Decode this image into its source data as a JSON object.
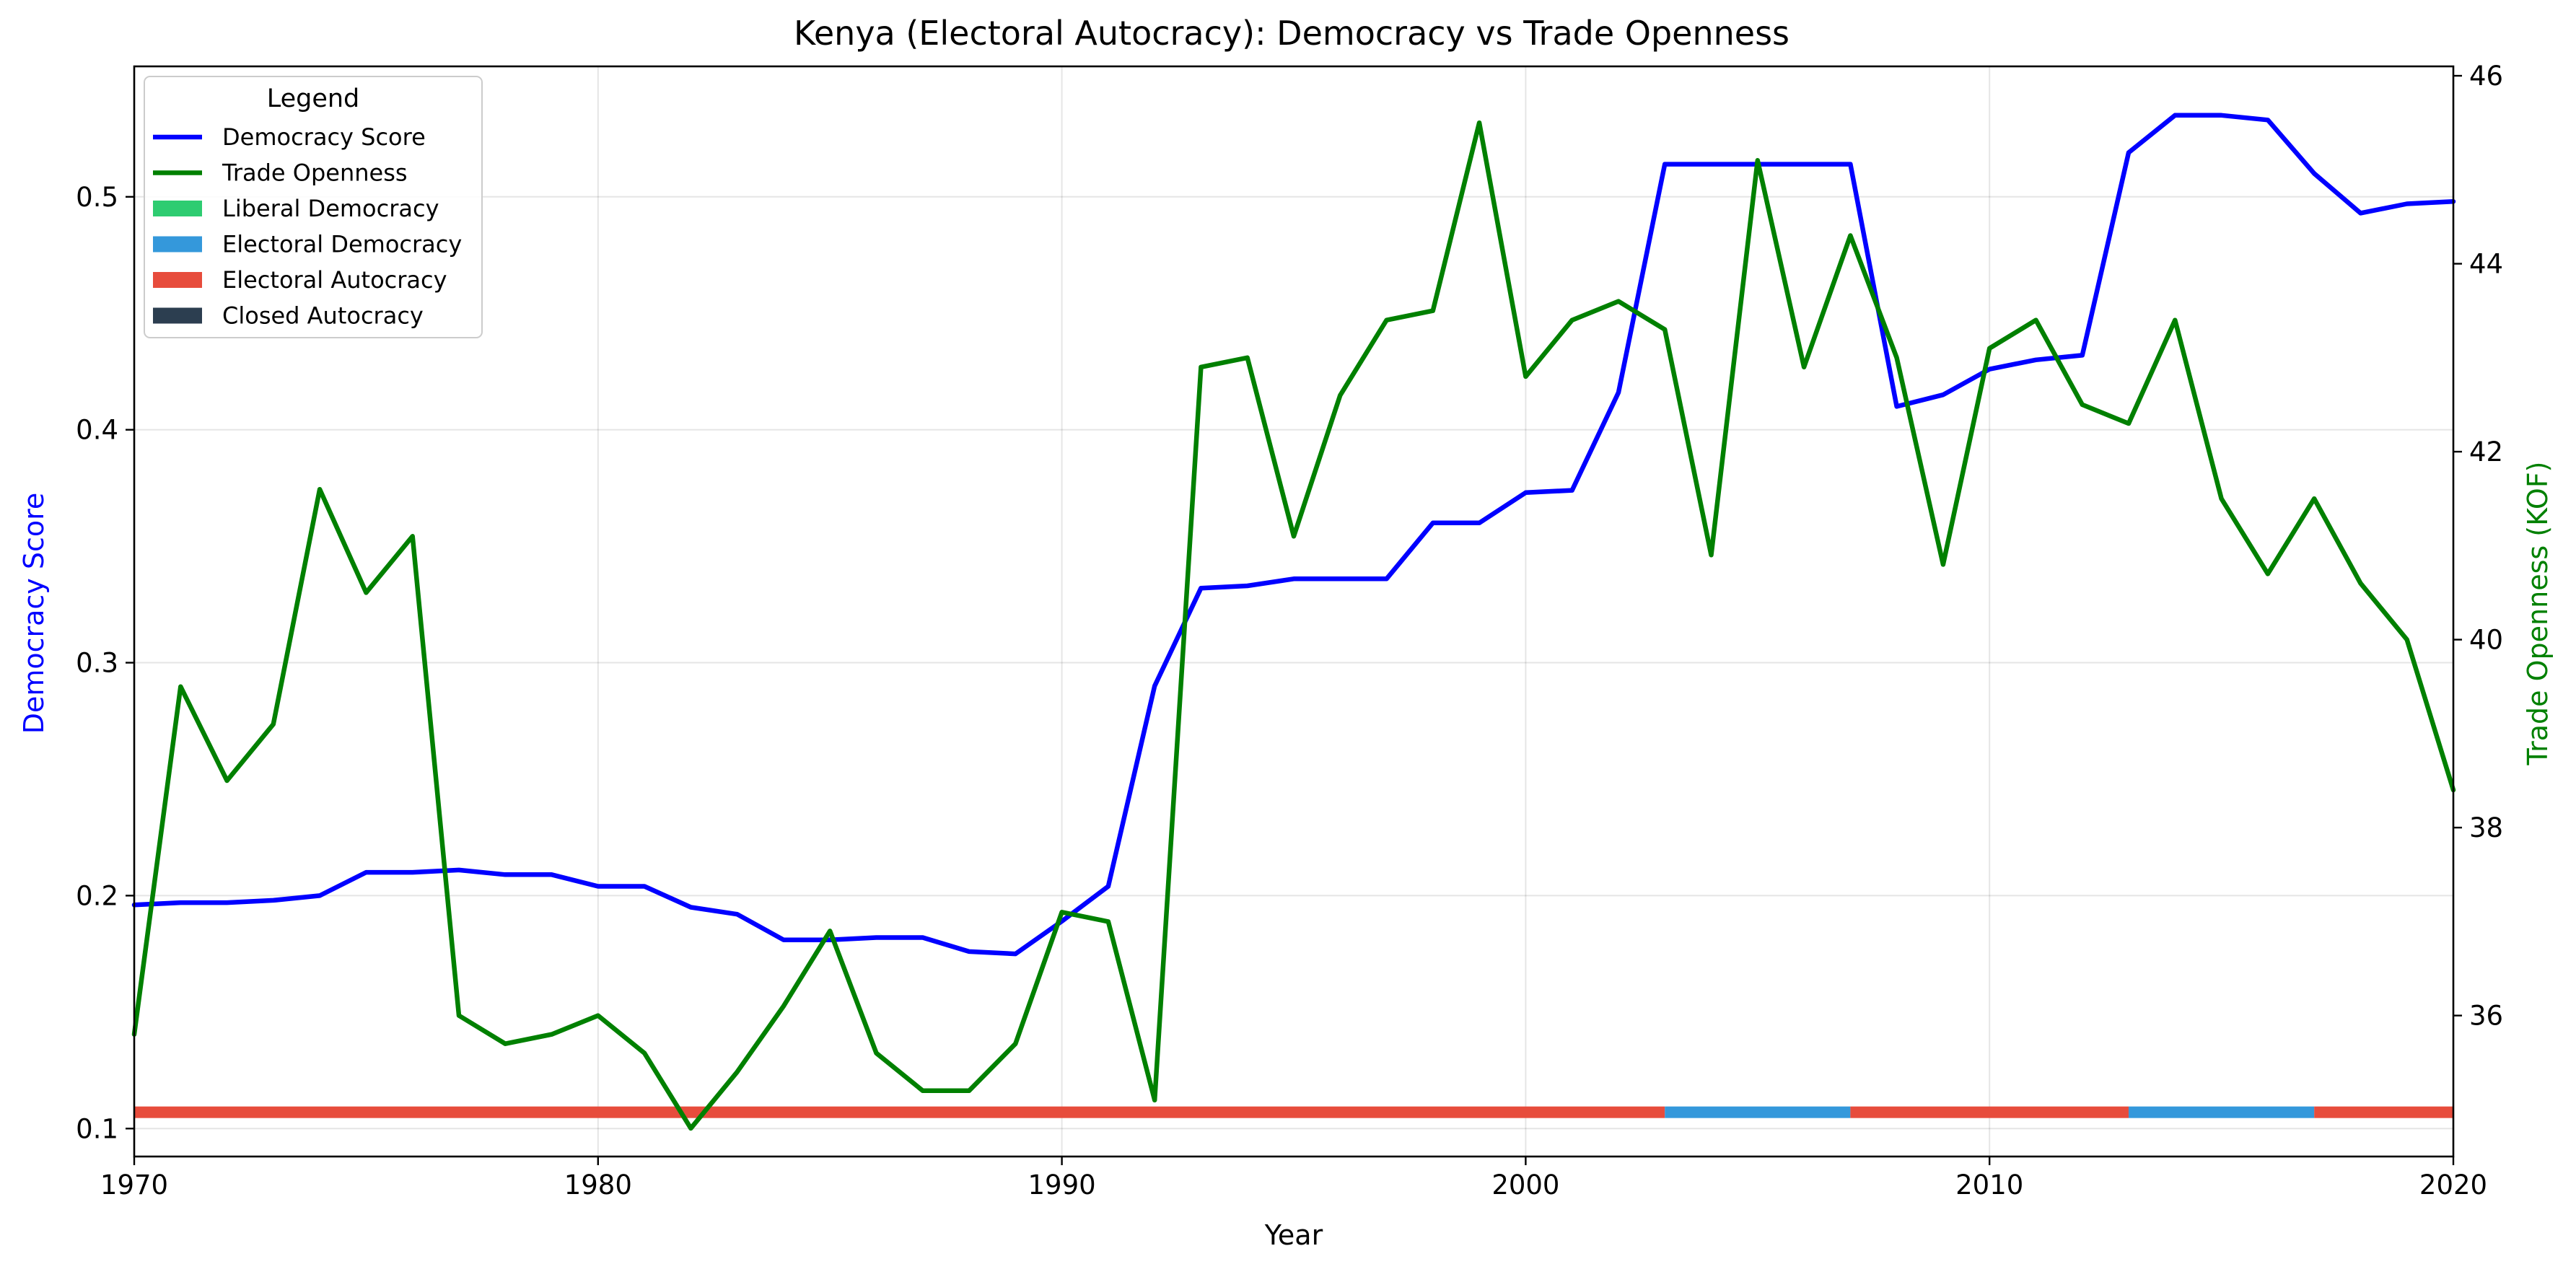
{
  "chart_data": {
    "type": "line",
    "title": "Kenya (Electoral Autocracy): Democracy vs Trade Openness",
    "xlabel": "Year",
    "ylabel_left": "Democracy Score",
    "ylabel_right": "Trade Openness (KOF)",
    "xlim": [
      1970,
      2020
    ],
    "ylim_left": [
      0.088,
      0.556
    ],
    "ylim_right": [
      34.5,
      46.1
    ],
    "x_ticks": [
      1970,
      1980,
      1990,
      2000,
      2010,
      2020
    ],
    "y_ticks_left": [
      0.1,
      0.2,
      0.3,
      0.4,
      0.5
    ],
    "y_ticks_right": [
      36,
      38,
      40,
      42,
      44,
      46
    ],
    "grid": true,
    "legend": {
      "title": "Legend",
      "position": "top-left",
      "entries": [
        {
          "label": "Democracy Score",
          "color": "#0000ff",
          "kind": "line"
        },
        {
          "label": "Trade Openness",
          "color": "#008000",
          "kind": "line"
        },
        {
          "label": "Liberal Democracy",
          "color": "#2ecc71",
          "kind": "patch"
        },
        {
          "label": "Electoral Democracy",
          "color": "#3498db",
          "kind": "patch"
        },
        {
          "label": "Electoral Autocracy",
          "color": "#e74c3c",
          "kind": "patch"
        },
        {
          "label": "Closed Autocracy",
          "color": "#2c3e50",
          "kind": "patch"
        }
      ]
    },
    "series": [
      {
        "name": "Democracy Score",
        "axis": "left",
        "color": "#0000ff",
        "x": [
          1970,
          1971,
          1972,
          1973,
          1974,
          1975,
          1976,
          1977,
          1978,
          1979,
          1980,
          1981,
          1982,
          1983,
          1984,
          1985,
          1986,
          1987,
          1988,
          1989,
          1990,
          1991,
          1992,
          1993,
          1994,
          1995,
          1996,
          1997,
          1998,
          1999,
          2000,
          2001,
          2002,
          2003,
          2004,
          2005,
          2006,
          2007,
          2008,
          2009,
          2010,
          2011,
          2012,
          2013,
          2014,
          2015,
          2016,
          2017,
          2018,
          2019,
          2020
        ],
        "y": [
          0.196,
          0.197,
          0.197,
          0.198,
          0.2,
          0.21,
          0.21,
          0.211,
          0.209,
          0.209,
          0.204,
          0.204,
          0.195,
          0.192,
          0.181,
          0.181,
          0.182,
          0.182,
          0.176,
          0.175,
          0.189,
          0.204,
          0.29,
          0.332,
          0.333,
          0.336,
          0.336,
          0.336,
          0.36,
          0.36,
          0.373,
          0.374,
          0.416,
          0.514,
          0.514,
          0.514,
          0.514,
          0.514,
          0.41,
          0.415,
          0.426,
          0.43,
          0.432,
          0.519,
          0.535,
          0.535,
          0.533,
          0.51,
          0.493,
          0.497,
          0.498
        ]
      },
      {
        "name": "Trade Openness",
        "axis": "right",
        "color": "#008000",
        "x": [
          1970,
          1971,
          1972,
          1973,
          1974,
          1975,
          1976,
          1977,
          1978,
          1979,
          1980,
          1981,
          1982,
          1983,
          1984,
          1985,
          1986,
          1987,
          1988,
          1989,
          1990,
          1991,
          1992,
          1993,
          1994,
          1995,
          1996,
          1997,
          1998,
          1999,
          2000,
          2001,
          2002,
          2003,
          2004,
          2005,
          2006,
          2007,
          2008,
          2009,
          2010,
          2011,
          2012,
          2013,
          2014,
          2015,
          2016,
          2017,
          2018,
          2019,
          2020
        ],
        "y": [
          35.8,
          39.5,
          38.5,
          39.1,
          41.6,
          40.5,
          41.1,
          36.0,
          35.7,
          35.8,
          36.0,
          35.6,
          34.8,
          35.4,
          36.1,
          36.9,
          35.6,
          35.2,
          35.2,
          35.7,
          37.1,
          37.0,
          35.1,
          42.9,
          43.0,
          41.1,
          42.6,
          43.4,
          43.5,
          45.5,
          42.8,
          43.4,
          43.6,
          43.3,
          40.9,
          45.1,
          42.9,
          44.3,
          43.0,
          40.8,
          43.1,
          43.4,
          42.5,
          42.3,
          43.4,
          41.5,
          40.7,
          41.5,
          40.6,
          40.0,
          38.4
        ]
      }
    ],
    "regime_bar": {
      "y_value": 0.107,
      "segments": [
        {
          "start": 1970,
          "end": 2003,
          "regime": "Electoral Autocracy",
          "color": "#e74c3c"
        },
        {
          "start": 2003,
          "end": 2007,
          "regime": "Electoral Democracy",
          "color": "#3498db"
        },
        {
          "start": 2007,
          "end": 2013,
          "regime": "Electoral Autocracy",
          "color": "#e74c3c"
        },
        {
          "start": 2013,
          "end": 2017,
          "regime": "Electoral Democracy",
          "color": "#3498db"
        },
        {
          "start": 2017,
          "end": 2020,
          "regime": "Electoral Autocracy",
          "color": "#e74c3c"
        }
      ]
    }
  }
}
